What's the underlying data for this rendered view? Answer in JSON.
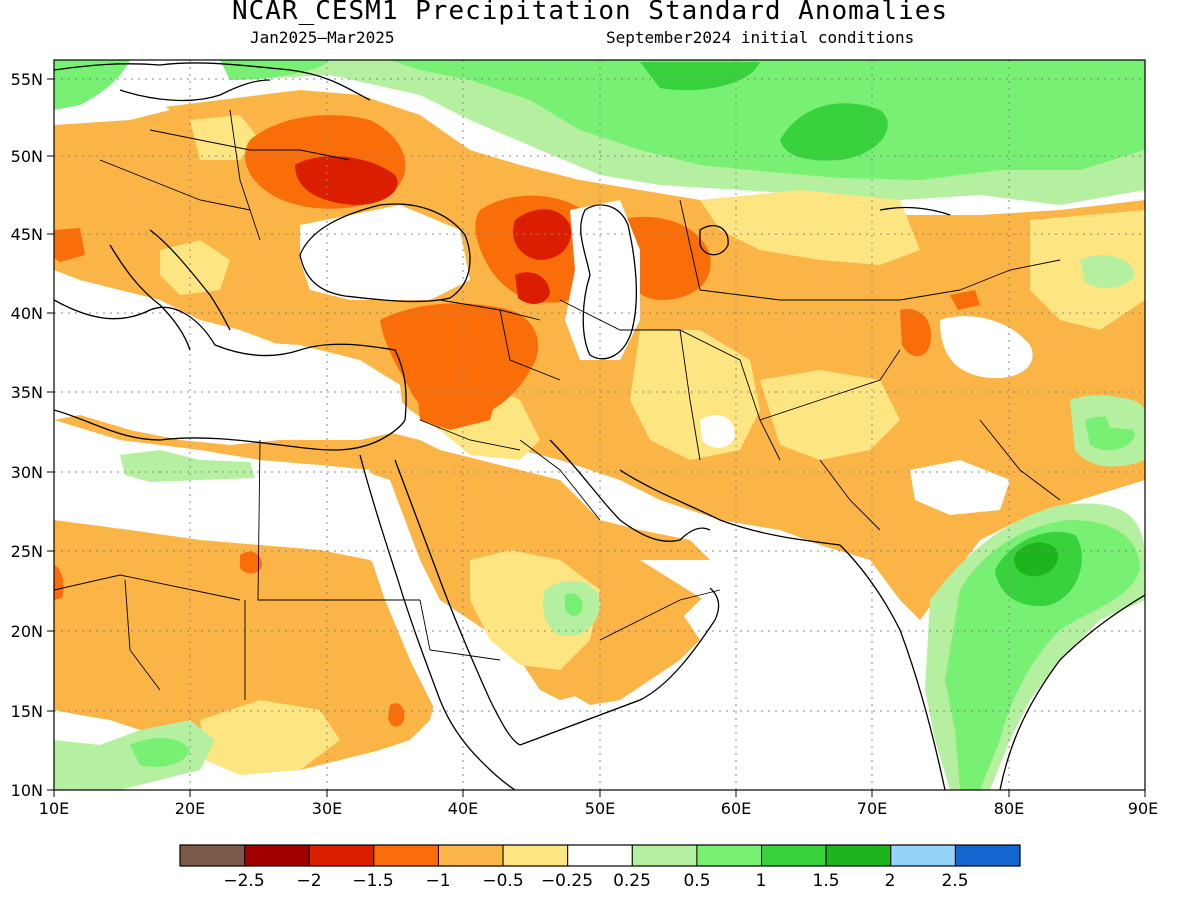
{
  "title": "NCAR_CESM1 Precipitation Standard Anomalies",
  "subtitle_left": "Jan2025–Mar2025",
  "subtitle_right": "September2024 initial conditions",
  "map": {
    "lon_range": [
      10,
      90
    ],
    "lat_range": [
      10,
      56
    ],
    "lon_ticks": [
      "10E",
      "20E",
      "30E",
      "40E",
      "50E",
      "60E",
      "70E",
      "80E",
      "90E"
    ],
    "lat_ticks": [
      "55N",
      "50N",
      "45N",
      "40N",
      "35N",
      "30N",
      "25N",
      "20N",
      "15N",
      "10N"
    ],
    "gridlines": "dotted"
  },
  "colors": {
    "lt_m2_5": "#7b5a4a",
    "m2_5": "#a00000",
    "m2": "#dc1e00",
    "m1_5": "#fa6e0a",
    "m1": "#fbb446",
    "m0_5": "#fde682",
    "m0_25": "#ffffff",
    "p0_25": "#b4f0a0",
    "p0_5": "#78f073",
    "p1": "#37d23c",
    "p1_5": "#1eb41e",
    "p2": "#96d2fa",
    "p2_5": "#1464d2"
  },
  "colorbar": {
    "labels": [
      "−2.5",
      "−2",
      "−1.5",
      "−1",
      "−0.5",
      "−0.25",
      "0.25",
      "0.5",
      "1",
      "1.5",
      "2",
      "2.5"
    ],
    "swatches": [
      "#7b5a4a",
      "#a00000",
      "#dc1e00",
      "#fa6e0a",
      "#fbb446",
      "#fde682",
      "#ffffff",
      "#b4f0a0",
      "#78f073",
      "#37d23c",
      "#1eb41e",
      "#96d2fa",
      "#1464d2"
    ]
  }
}
